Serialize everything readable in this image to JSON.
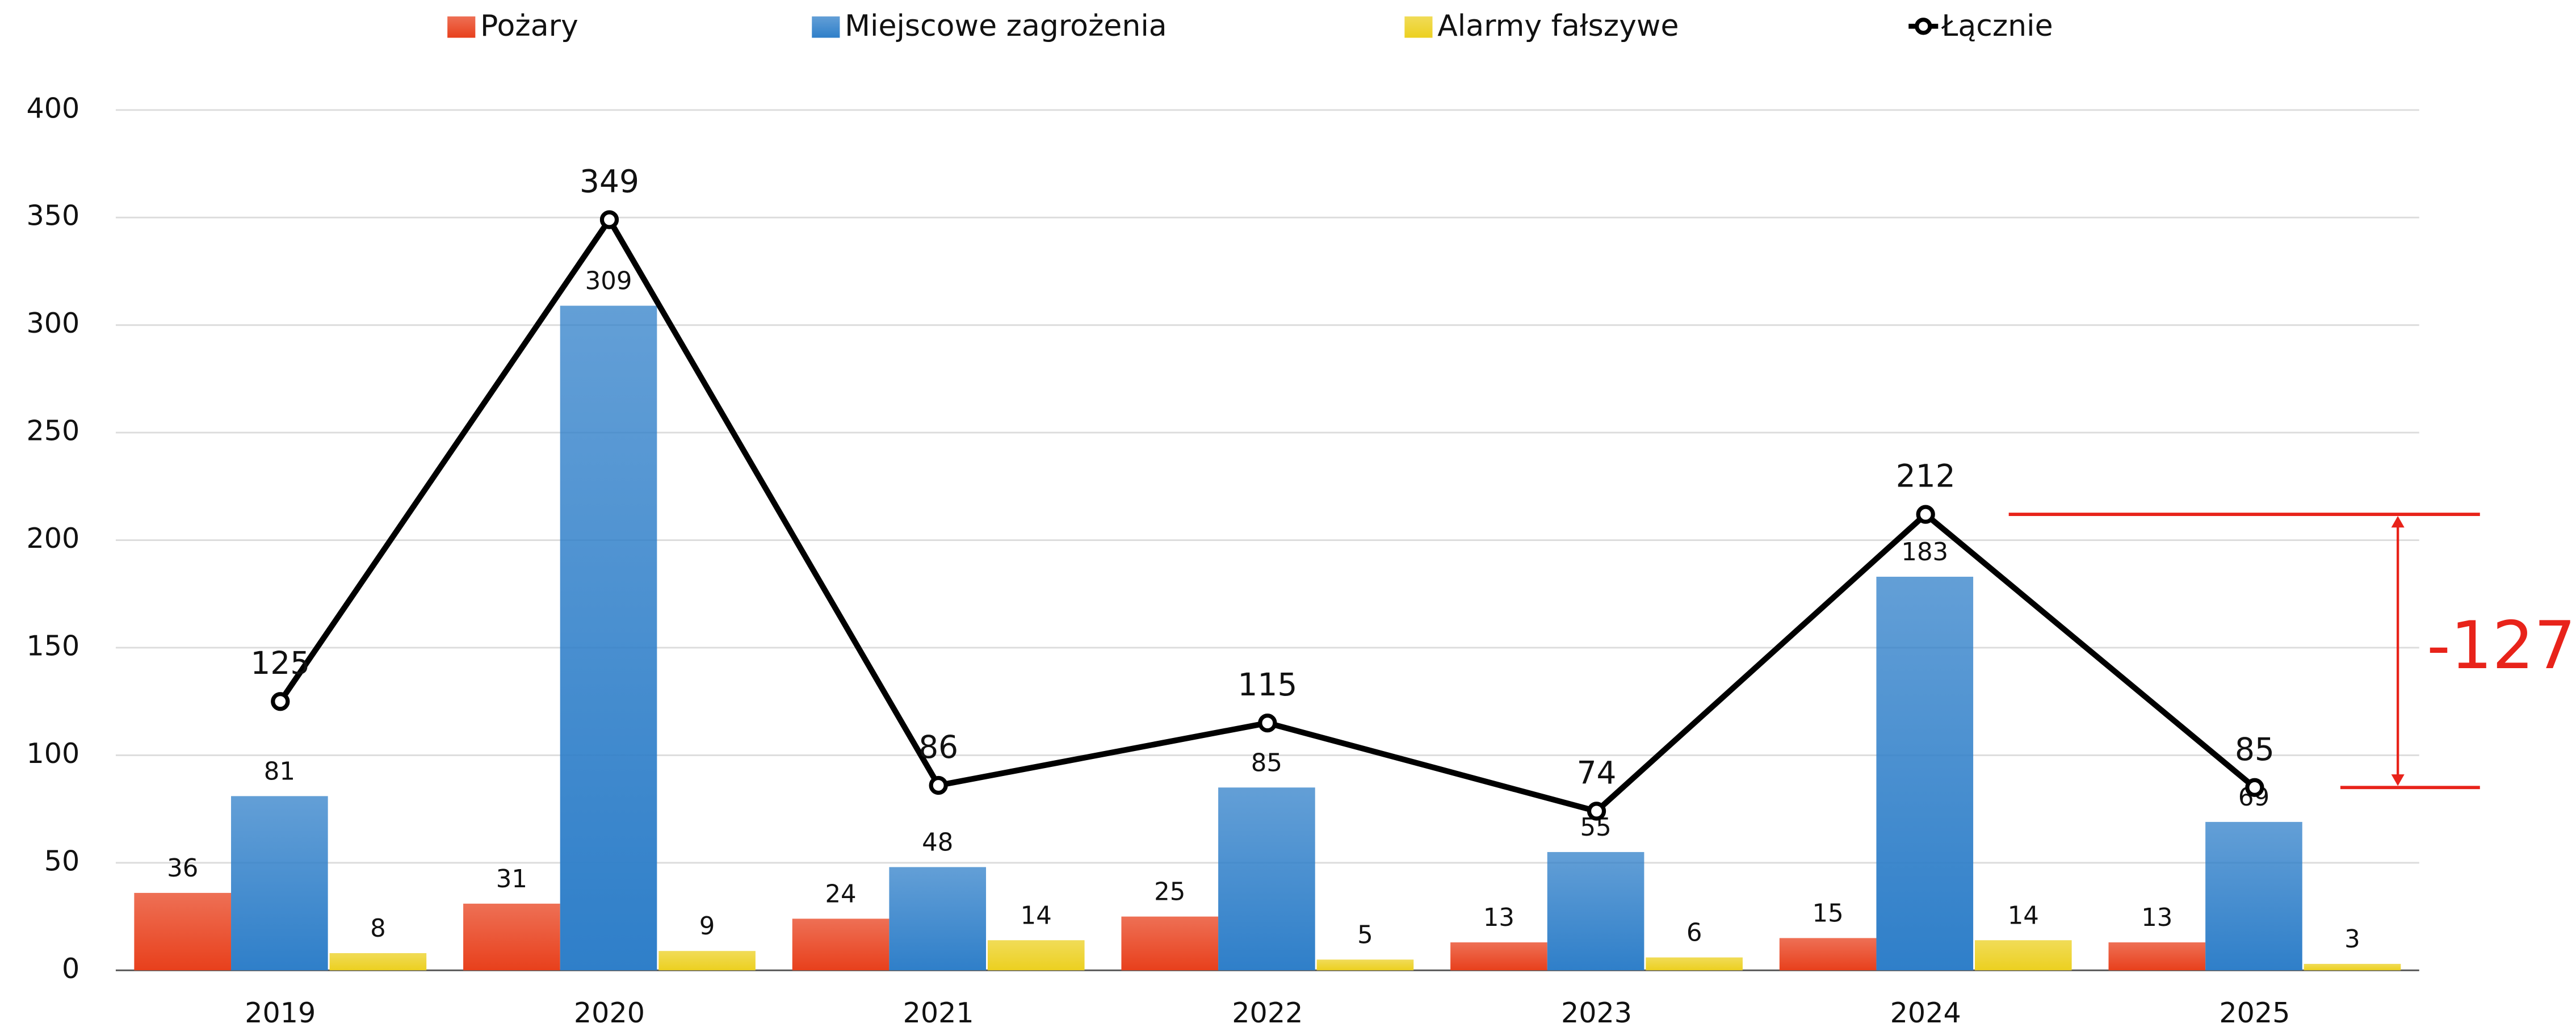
{
  "chart_data": {
    "type": "bar",
    "categories": [
      "2019",
      "2020",
      "2021",
      "2022",
      "2023",
      "2024",
      "2025"
    ],
    "series": [
      {
        "name": "Pożary",
        "color": "#e8401c",
        "values": [
          36,
          31,
          24,
          25,
          13,
          15,
          13
        ]
      },
      {
        "name": "Miejscowe zagrożenia",
        "color": "#2f7fc9",
        "values": [
          81,
          309,
          48,
          85,
          55,
          183,
          69
        ]
      },
      {
        "name": "Alarmy fałszywe",
        "color": "#ecd020",
        "values": [
          8,
          9,
          14,
          5,
          6,
          14,
          3
        ]
      },
      {
        "name": "Łącznie",
        "type": "line",
        "color": "#000000",
        "values": [
          125,
          349,
          86,
          115,
          74,
          212,
          85
        ]
      }
    ],
    "annotation": "-127",
    "ylim": [
      0,
      400
    ],
    "yticks": [
      0,
      50,
      100,
      150,
      200,
      250,
      300,
      350,
      400
    ],
    "grid": true
  }
}
